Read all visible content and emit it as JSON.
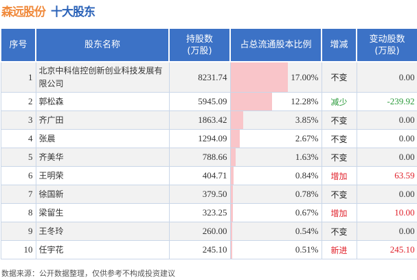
{
  "title": {
    "company": "森远股份",
    "subtitle": "十大股东"
  },
  "chart_data": {
    "type": "table",
    "columns": [
      "序号",
      "股东名称",
      "持股数\n(万股)",
      "占总流通股本比例",
      "增减",
      "变动股数\n(万股)"
    ],
    "rows": [
      {
        "rank": "1",
        "name": "北京中科信控创新创业科技发展有限公司",
        "shares": "8231.74",
        "ratio": "17.00%",
        "ratio_value": 17.0,
        "change": "不变",
        "delta": "0.00"
      },
      {
        "rank": "2",
        "name": "郭松森",
        "shares": "5945.09",
        "ratio": "12.28%",
        "ratio_value": 12.28,
        "change": "减少",
        "delta": "-239.92"
      },
      {
        "rank": "3",
        "name": "齐广田",
        "shares": "1863.42",
        "ratio": "3.85%",
        "ratio_value": 3.85,
        "change": "不变",
        "delta": "0.00"
      },
      {
        "rank": "4",
        "name": "张晨",
        "shares": "1294.09",
        "ratio": "2.67%",
        "ratio_value": 2.67,
        "change": "不变",
        "delta": "0.00"
      },
      {
        "rank": "5",
        "name": "齐美华",
        "shares": "788.66",
        "ratio": "1.63%",
        "ratio_value": 1.63,
        "change": "不变",
        "delta": "0.00"
      },
      {
        "rank": "6",
        "name": "王明荣",
        "shares": "404.71",
        "ratio": "0.84%",
        "ratio_value": 0.84,
        "change": "增加",
        "delta": "63.59"
      },
      {
        "rank": "7",
        "name": "徐国新",
        "shares": "379.50",
        "ratio": "0.78%",
        "ratio_value": 0.78,
        "change": "不变",
        "delta": "0.00"
      },
      {
        "rank": "8",
        "name": "梁留生",
        "shares": "323.25",
        "ratio": "0.67%",
        "ratio_value": 0.67,
        "change": "增加",
        "delta": "10.00"
      },
      {
        "rank": "9",
        "name": "王冬玲",
        "shares": "260.00",
        "ratio": "0.54%",
        "ratio_value": 0.54,
        "change": "不变",
        "delta": "0.00"
      },
      {
        "rank": "10",
        "name": "任宇花",
        "shares": "245.10",
        "ratio": "0.51%",
        "ratio_value": 0.51,
        "change": "新进",
        "delta": "245.10"
      }
    ]
  },
  "colors": {
    "header": "#3c72c6",
    "bar": "#f9c5c9",
    "increase": "#e0202a",
    "decrease": "#2a9a3a",
    "neutral": "#222222"
  },
  "footer": "数据来源：公开数据整理，仅供参考不构成投资建议"
}
